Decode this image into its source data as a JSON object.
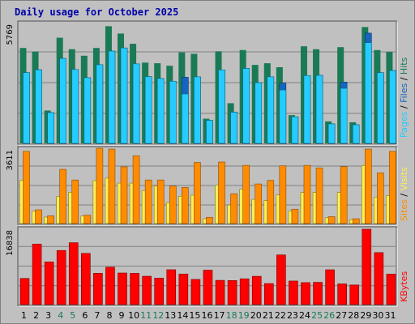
{
  "colors": {
    "hits": "#1a7a55",
    "hits_hi": "#0f5c3e",
    "files": "#1565c0",
    "pages": "#26ccff",
    "visits": "#ff8c00",
    "sites": "#ffee55",
    "kbytes": "#ff0000",
    "title": "#0000aa",
    "weekend_tick": "#1a7a55",
    "weekday_tick": "#000000"
  },
  "chart_data": [
    {
      "type": "bar",
      "title": "Daily usage for October 2025",
      "ymax_label": "5769",
      "ylim": [
        0,
        5769
      ],
      "legend_parts": [
        "Pages",
        "Files",
        "Hits"
      ],
      "grid": true,
      "categories": [
        "1",
        "2",
        "3",
        "4",
        "5",
        "6",
        "7",
        "8",
        "9",
        "10",
        "11",
        "12",
        "13",
        "14",
        "15",
        "16",
        "17",
        "18",
        "19",
        "20",
        "21",
        "22",
        "23",
        "24",
        "25",
        "26",
        "27",
        "28",
        "29",
        "30",
        "31"
      ],
      "series": [
        {
          "name": "Hits",
          "values": [
            4560,
            4390,
            1570,
            5050,
            4500,
            4190,
            4560,
            5600,
            5250,
            4760,
            3860,
            3830,
            3710,
            4350,
            4280,
            1180,
            4400,
            1920,
            4460,
            3750,
            3830,
            3640,
            1350,
            4640,
            4500,
            1050,
            4600,
            1010,
            5560,
            4460,
            4370
          ]
        },
        {
          "name": "Files",
          "values": [
            3380,
            3520,
            1470,
            4060,
            3530,
            3140,
            3760,
            4410,
            4560,
            3800,
            3190,
            3100,
            2970,
            3160,
            3180,
            1100,
            3510,
            1490,
            3580,
            2900,
            3180,
            2880,
            1270,
            3240,
            3250,
            930,
            2930,
            890,
            5270,
            3380,
            3480
          ]
        },
        {
          "name": "Pages",
          "values": [
            3380,
            3520,
            1470,
            4060,
            3530,
            3140,
            3760,
            4410,
            4560,
            3800,
            3190,
            3100,
            2970,
            2360,
            3180,
            1100,
            3510,
            1490,
            3580,
            2900,
            3180,
            2550,
            1270,
            3240,
            3250,
            930,
            2630,
            890,
            4810,
            3380,
            3480
          ]
        }
      ]
    },
    {
      "type": "bar",
      "ymax_label": "3611",
      "ylim": [
        0,
        3611
      ],
      "legend_parts": [
        "Sites",
        "Visits"
      ],
      "grid": true,
      "categories": [
        "1",
        "2",
        "3",
        "4",
        "5",
        "6",
        "7",
        "8",
        "9",
        "10",
        "11",
        "12",
        "13",
        "14",
        "15",
        "16",
        "17",
        "18",
        "19",
        "20",
        "21",
        "22",
        "23",
        "24",
        "25",
        "26",
        "27",
        "28",
        "29",
        "30",
        "31"
      ],
      "series": [
        {
          "name": "Visits",
          "values": [
            3460,
            660,
            370,
            2600,
            2090,
            400,
            3610,
            3570,
            2720,
            3250,
            2090,
            2090,
            1800,
            1730,
            2930,
            300,
            2950,
            1430,
            2790,
            1900,
            2070,
            2770,
            690,
            2790,
            2670,
            330,
            2730,
            230,
            3570,
            2430,
            3460
          ]
        },
        {
          "name": "Sites",
          "values": [
            2080,
            590,
            310,
            1290,
            1500,
            360,
            2060,
            2180,
            1940,
            1940,
            1580,
            1800,
            1000,
            1310,
            1360,
            230,
            1840,
            890,
            1640,
            1160,
            1100,
            1370,
            600,
            1490,
            1490,
            280,
            1490,
            180,
            2780,
            1250,
            1340
          ]
        }
      ]
    },
    {
      "type": "bar",
      "ymax_label": "16838",
      "ylim": [
        0,
        16838
      ],
      "legend_parts": [
        "KBytes"
      ],
      "grid": true,
      "categories": [
        "1",
        "2",
        "3",
        "4",
        "5",
        "6",
        "7",
        "8",
        "9",
        "10",
        "11",
        "12",
        "13",
        "14",
        "15",
        "16",
        "17",
        "18",
        "19",
        "20",
        "21",
        "22",
        "23",
        "24",
        "25",
        "26",
        "27",
        "28",
        "29",
        "30",
        "31"
      ],
      "series": [
        {
          "name": "KBytes",
          "values": [
            5840,
            13520,
            9530,
            12090,
            13830,
            11440,
            7000,
            8350,
            7060,
            6980,
            6330,
            5920,
            7790,
            6830,
            5620,
            7690,
            5410,
            5370,
            5760,
            6320,
            4700,
            11100,
            5260,
            4910,
            4970,
            7780,
            4620,
            4380,
            16838,
            11620,
            6800
          ]
        }
      ]
    }
  ]
}
